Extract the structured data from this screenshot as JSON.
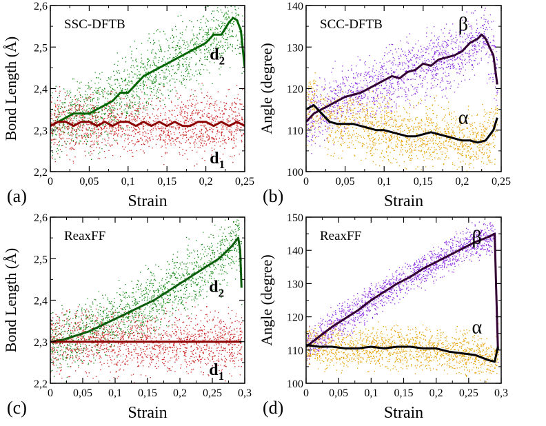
{
  "chart_data": [
    {
      "panel": "(a)",
      "type": "scatter",
      "title": "SSC-DFTB",
      "xlabel": "Strain",
      "ylabel": "Bond Length (Å)",
      "xlim": [
        0,
        0.25
      ],
      "ylim": [
        2.2,
        2.6
      ],
      "xticks": [
        "0",
        "0,05",
        "0,1",
        "0,15",
        "0,2",
        "0,25"
      ],
      "xtick_values": [
        0,
        0.05,
        0.1,
        0.15,
        0.2,
        0.25
      ],
      "yticks": [
        "2,2",
        "2,3",
        "2,4",
        "2,5",
        "2,6"
      ],
      "ytick_values": [
        2.2,
        2.3,
        2.4,
        2.5,
        2.6
      ],
      "series": [
        {
          "name": "d2",
          "label_main": "d",
          "label_sub": "2",
          "label_at": [
            0.205,
            2.47
          ],
          "color": "#006400",
          "scatter_color": "#118811",
          "spread": 0.07,
          "x": [
            0,
            0.01,
            0.02,
            0.03,
            0.04,
            0.05,
            0.06,
            0.07,
            0.08,
            0.09,
            0.1,
            0.11,
            0.12,
            0.13,
            0.14,
            0.15,
            0.16,
            0.17,
            0.18,
            0.19,
            0.2,
            0.21,
            0.22,
            0.23,
            0.235,
            0.24,
            0.245,
            0.25
          ],
          "y": [
            2.31,
            2.32,
            2.33,
            2.34,
            2.34,
            2.34,
            2.35,
            2.36,
            2.37,
            2.39,
            2.39,
            2.41,
            2.43,
            2.44,
            2.45,
            2.46,
            2.47,
            2.48,
            2.49,
            2.5,
            2.51,
            2.53,
            2.53,
            2.56,
            2.57,
            2.565,
            2.54,
            2.45
          ]
        },
        {
          "name": "d1",
          "label_main": "d",
          "label_sub": "1",
          "label_at": [
            0.205,
            2.22
          ],
          "color": "#8b0000",
          "scatter_color": "#cc2222",
          "spread": 0.06,
          "x": [
            0,
            0.01,
            0.02,
            0.03,
            0.04,
            0.05,
            0.06,
            0.07,
            0.08,
            0.09,
            0.1,
            0.11,
            0.12,
            0.13,
            0.14,
            0.15,
            0.16,
            0.17,
            0.18,
            0.19,
            0.2,
            0.21,
            0.22,
            0.23,
            0.24,
            0.25
          ],
          "y": [
            2.31,
            2.32,
            2.32,
            2.31,
            2.32,
            2.32,
            2.31,
            2.32,
            2.31,
            2.32,
            2.32,
            2.31,
            2.32,
            2.31,
            2.32,
            2.31,
            2.32,
            2.31,
            2.31,
            2.32,
            2.32,
            2.31,
            2.32,
            2.31,
            2.32,
            2.31
          ]
        }
      ]
    },
    {
      "panel": "(b)",
      "type": "scatter",
      "title": "SCC-DFTB",
      "xlabel": "Strain",
      "ylabel": "Angle (degree)",
      "xlim": [
        0,
        0.25
      ],
      "ylim": [
        100,
        140
      ],
      "xticks": [
        "0",
        "0,05",
        "0,1",
        "0,15",
        "0,2",
        "0,25"
      ],
      "xtick_values": [
        0,
        0.05,
        0.1,
        0.15,
        0.2,
        0.25
      ],
      "yticks": [
        "100",
        "110",
        "120",
        "130",
        "140"
      ],
      "ytick_values": [
        100,
        110,
        120,
        130,
        140
      ],
      "series": [
        {
          "name": "β",
          "label_main": "β",
          "label_sub": "",
          "label_at": [
            0.195,
            134
          ],
          "color": "#330033",
          "scatter_color": "#8a2be2",
          "spread": 6,
          "x": [
            0,
            0.01,
            0.02,
            0.03,
            0.04,
            0.05,
            0.06,
            0.07,
            0.08,
            0.09,
            0.1,
            0.11,
            0.12,
            0.13,
            0.14,
            0.15,
            0.16,
            0.17,
            0.18,
            0.19,
            0.2,
            0.21,
            0.22,
            0.225,
            0.23,
            0.24,
            0.245
          ],
          "y": [
            112,
            114,
            115,
            116,
            117,
            118,
            118.5,
            119,
            120,
            121,
            122,
            123,
            122.5,
            124,
            124.5,
            126,
            125.5,
            127,
            127.5,
            128,
            129,
            131,
            132,
            133,
            132,
            128,
            121
          ]
        },
        {
          "name": "α",
          "label_main": "α",
          "label_sub": "",
          "label_at": [
            0.195,
            111.5
          ],
          "color": "#000000",
          "scatter_color": "#e6a100",
          "spread": 6,
          "x": [
            0,
            0.01,
            0.02,
            0.03,
            0.04,
            0.05,
            0.06,
            0.07,
            0.08,
            0.09,
            0.1,
            0.11,
            0.12,
            0.13,
            0.14,
            0.15,
            0.16,
            0.17,
            0.18,
            0.19,
            0.2,
            0.21,
            0.22,
            0.23,
            0.24,
            0.245
          ],
          "y": [
            115,
            116,
            114,
            112,
            111.5,
            111.5,
            111.5,
            111,
            110.5,
            110,
            110,
            109.5,
            109,
            108.5,
            108.5,
            109,
            109.5,
            109,
            108.5,
            108,
            107.5,
            107.5,
            107,
            107.5,
            110,
            113
          ]
        }
      ]
    },
    {
      "panel": "(c)",
      "type": "scatter",
      "title": "ReaxFF",
      "xlabel": "Strain",
      "ylabel": "Bond Length (Å)",
      "xlim": [
        0,
        0.3
      ],
      "ylim": [
        2.2,
        2.6
      ],
      "xticks": [
        "0",
        "0,05",
        "0,1",
        "0,15",
        "0,2",
        "0,25",
        "0,3"
      ],
      "xtick_values": [
        0,
        0.05,
        0.1,
        0.15,
        0.2,
        0.25,
        0.3
      ],
      "yticks": [
        "2,2",
        "2,3",
        "2,4",
        "2,5",
        "2,6"
      ],
      "ytick_values": [
        2.2,
        2.3,
        2.4,
        2.5,
        2.6
      ],
      "series": [
        {
          "name": "d2",
          "label_main": "d",
          "label_sub": "2",
          "label_at": [
            0.245,
            2.42
          ],
          "color": "#0b5d0b",
          "scatter_color": "#118811",
          "spread": 0.06,
          "x": [
            0,
            0.02,
            0.04,
            0.06,
            0.08,
            0.1,
            0.12,
            0.14,
            0.16,
            0.18,
            0.2,
            0.22,
            0.24,
            0.26,
            0.28,
            0.29,
            0.293,
            0.295
          ],
          "y": [
            2.3,
            2.305,
            2.315,
            2.325,
            2.34,
            2.355,
            2.37,
            2.385,
            2.4,
            2.42,
            2.44,
            2.46,
            2.48,
            2.5,
            2.53,
            2.55,
            2.52,
            2.43
          ]
        },
        {
          "name": "d1",
          "label_main": "d",
          "label_sub": "1",
          "label_at": [
            0.245,
            2.22
          ],
          "color": "#8b0000",
          "scatter_color": "#cc2222",
          "spread": 0.06,
          "x": [
            0,
            0.02,
            0.04,
            0.06,
            0.08,
            0.1,
            0.12,
            0.14,
            0.16,
            0.18,
            0.2,
            0.22,
            0.24,
            0.26,
            0.28,
            0.295
          ],
          "y": [
            2.3,
            2.3,
            2.3,
            2.3,
            2.3,
            2.3,
            2.3,
            2.3,
            2.3,
            2.3,
            2.3,
            2.3,
            2.3,
            2.3,
            2.3,
            2.3
          ]
        }
      ]
    },
    {
      "panel": "(d)",
      "type": "scatter",
      "title": "ReaxFF",
      "xlabel": "Strain",
      "ylabel": "Angle (degree)",
      "xlim": [
        0,
        0.3
      ],
      "ylim": [
        100,
        150
      ],
      "xticks": [
        "0",
        "0,05",
        "0,1",
        "0,15",
        "0,2",
        "0,25",
        "0,3"
      ],
      "xtick_values": [
        0,
        0.05,
        0.1,
        0.15,
        0.2,
        0.25,
        0.3
      ],
      "yticks": [
        "100",
        "110",
        "120",
        "130",
        "140",
        "150"
      ],
      "ytick_values": [
        100,
        110,
        120,
        130,
        140,
        150
      ],
      "series": [
        {
          "name": "β",
          "label_main": "β",
          "label_sub": "",
          "label_at": [
            0.255,
            142
          ],
          "color": "#330033",
          "scatter_color": "#8a2be2",
          "spread": 4,
          "x": [
            0,
            0.02,
            0.04,
            0.06,
            0.08,
            0.1,
            0.12,
            0.14,
            0.16,
            0.18,
            0.2,
            0.22,
            0.24,
            0.26,
            0.28,
            0.29,
            0.292,
            0.295
          ],
          "y": [
            111,
            114,
            117,
            119.5,
            122,
            125,
            127.5,
            130,
            132,
            134.5,
            136.5,
            138.5,
            140.5,
            142.5,
            144,
            145,
            130,
            110
          ]
        },
        {
          "name": "α",
          "label_main": "α",
          "label_sub": "",
          "label_at": [
            0.255,
            115
          ],
          "color": "#000000",
          "scatter_color": "#e6a100",
          "spread": 5,
          "x": [
            0,
            0.02,
            0.04,
            0.06,
            0.08,
            0.1,
            0.12,
            0.14,
            0.16,
            0.18,
            0.2,
            0.22,
            0.24,
            0.26,
            0.28,
            0.29,
            0.295
          ],
          "y": [
            111.5,
            111,
            111,
            110.5,
            110.5,
            111,
            110.5,
            111,
            111,
            110.5,
            110.5,
            109.5,
            109,
            108.5,
            107,
            106.5,
            111
          ]
        }
      ]
    }
  ]
}
